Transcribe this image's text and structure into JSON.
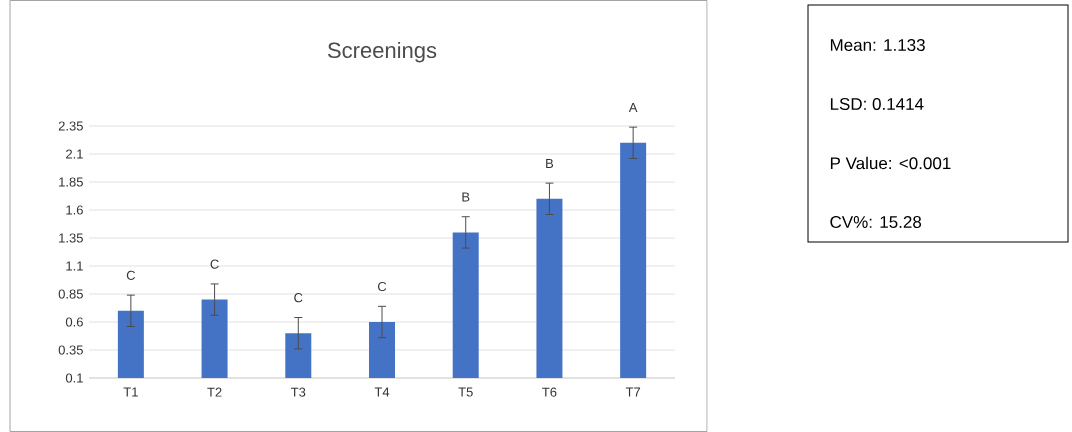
{
  "chart_data": {
    "type": "bar",
    "title": "Screenings",
    "categories": [
      "T1",
      "T2",
      "T3",
      "T4",
      "T5",
      "T6",
      "T7"
    ],
    "values": [
      0.7,
      0.8,
      0.5,
      0.6,
      1.4,
      1.7,
      2.2
    ],
    "errors": [
      0.14,
      0.14,
      0.14,
      0.14,
      0.14,
      0.14,
      0.14
    ],
    "color": "#4472c4",
    "ylim": [
      0.1,
      2.35
    ],
    "yticks": [
      0.1,
      0.35,
      0.6,
      0.85,
      1.1,
      1.35,
      1.6,
      1.85,
      2.1,
      2.35
    ],
    "grid": "y",
    "annotations": [
      {
        "text": "C",
        "x": "T1",
        "y": 0.84
      },
      {
        "text": "C",
        "x": "T2",
        "y": 0.94
      },
      {
        "text": "C",
        "x": "T3",
        "y": 0.64
      },
      {
        "text": "C",
        "x": "T4",
        "y": 0.74
      },
      {
        "text": "B",
        "x": "T5",
        "y": 1.54
      },
      {
        "text": "B",
        "x": "T6",
        "y": 1.84
      },
      {
        "text": "A",
        "x": "T7",
        "y": 2.34
      },
      "Mean: 1.133",
      "LSD: 0.1414",
      "P Value: <0.001",
      "CV%: 15.28"
    ]
  }
}
